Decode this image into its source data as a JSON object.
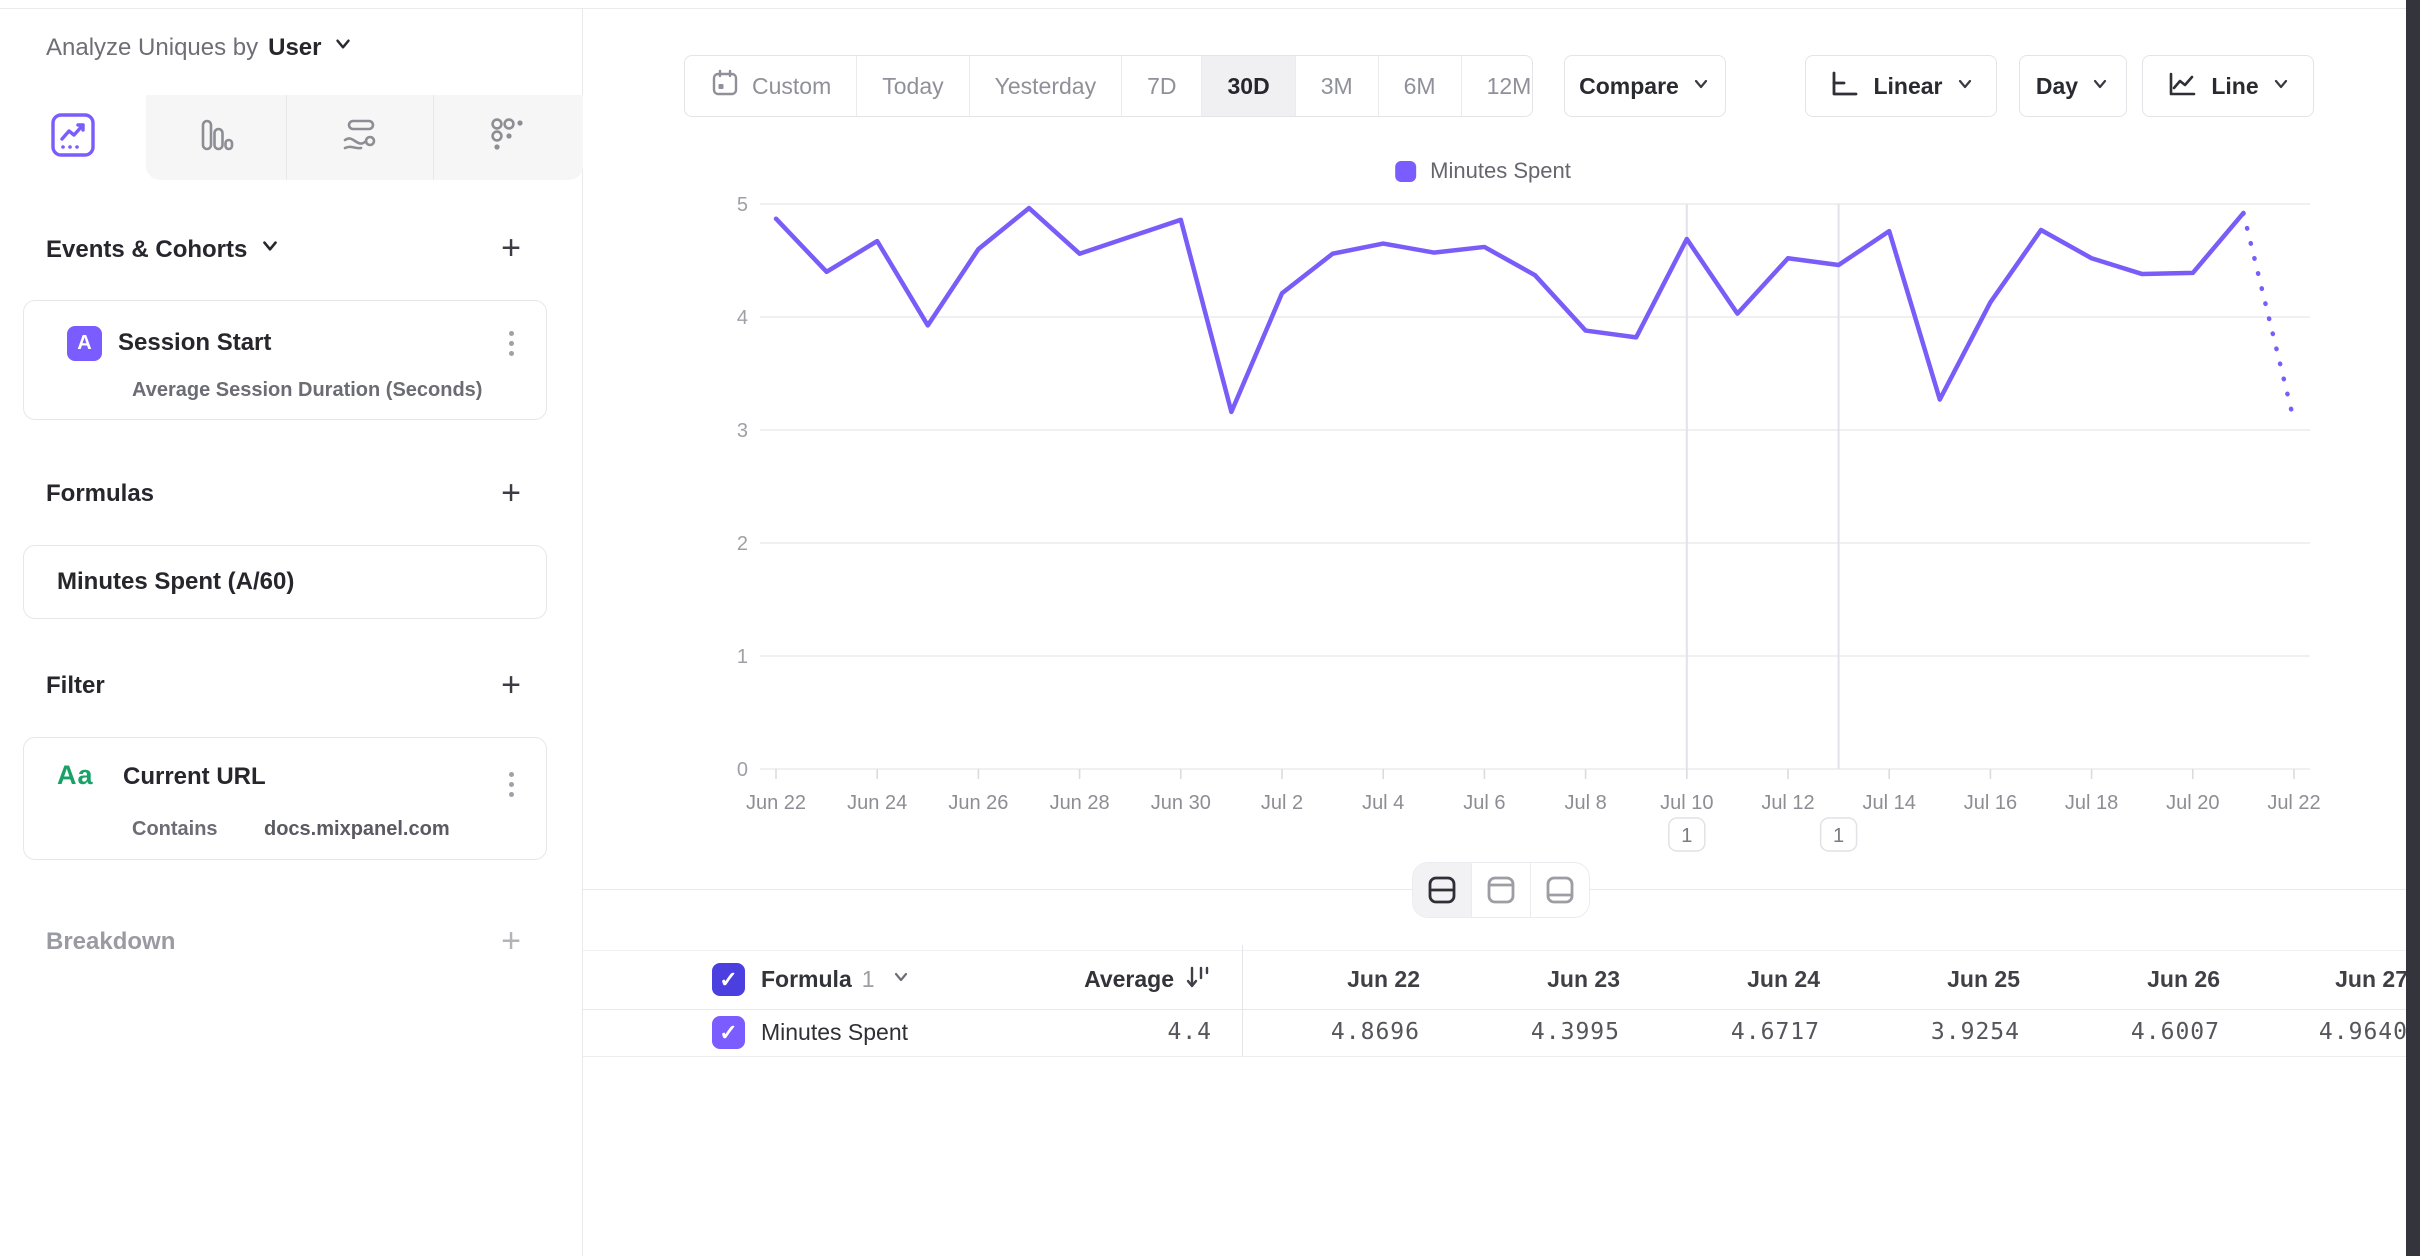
{
  "sidebar": {
    "analyze_label": "Analyze Uniques by",
    "analyze_value": "User",
    "tabs": [
      "insights-line",
      "bar",
      "flow",
      "grid"
    ],
    "events": {
      "title": "Events & Cohorts",
      "card": {
        "badge": "A",
        "title": "Session Start",
        "subtitle": "Average Session Duration (Seconds)"
      }
    },
    "formulas": {
      "title": "Formulas",
      "item": "Minutes Spent (A/60)"
    },
    "filter": {
      "title": "Filter",
      "card": {
        "badge": "Aa",
        "title": "Current URL",
        "operator": "Contains",
        "value": "docs.mixpanel.com"
      }
    },
    "breakdown": {
      "title": "Breakdown"
    }
  },
  "toolbar": {
    "ranges": [
      "Custom",
      "Today",
      "Yesterday",
      "7D",
      "30D",
      "3M",
      "6M",
      "12M"
    ],
    "active_range": "30D",
    "compare_label": "Compare",
    "scale_label": "Linear",
    "granularity_label": "Day",
    "chart_type_label": "Line"
  },
  "chart_data": {
    "type": "line",
    "title": "",
    "series_name": "Minutes Spent",
    "x": [
      "Jun 22",
      "Jun 23",
      "Jun 24",
      "Jun 25",
      "Jun 26",
      "Jun 27",
      "Jun 28",
      "Jun 29",
      "Jun 30",
      "Jul 1",
      "Jul 2",
      "Jul 3",
      "Jul 4",
      "Jul 5",
      "Jul 6",
      "Jul 7",
      "Jul 8",
      "Jul 9",
      "Jul 10",
      "Jul 11",
      "Jul 12",
      "Jul 13",
      "Jul 14",
      "Jul 15",
      "Jul 16",
      "Jul 17",
      "Jul 18",
      "Jul 19",
      "Jul 20",
      "Jul 21",
      "Jul 22"
    ],
    "values": [
      4.8696,
      4.3995,
      4.6717,
      3.9254,
      4.6007,
      4.964,
      4.56,
      4.71,
      4.86,
      3.16,
      4.21,
      4.56,
      4.65,
      4.57,
      4.62,
      4.37,
      3.88,
      3.82,
      4.69,
      4.03,
      4.52,
      4.46,
      4.76,
      3.27,
      4.13,
      4.77,
      4.52,
      4.38,
      4.39,
      4.92,
      3.08
    ],
    "dashed_from_index": 29,
    "ylim": [
      0,
      5
    ],
    "y_ticks": [
      0,
      1,
      2,
      3,
      4,
      5
    ],
    "x_label_step": 2,
    "grid": true,
    "legend_position": "top-center",
    "line_color": "#7A5CF8",
    "annotations": [
      {
        "at": "Jul 10",
        "index": 18,
        "label": "1"
      },
      {
        "at": "Jul 13",
        "index": 21,
        "label": "1"
      }
    ]
  },
  "table": {
    "formula_label": "Formula",
    "formula_index": "1",
    "average_label": "Average",
    "average_value": "4.4",
    "row_label": "Minutes Spent",
    "columns": [
      "Jun 22",
      "Jun 23",
      "Jun 24",
      "Jun 25",
      "Jun 26",
      "Jun 27"
    ],
    "row_values": [
      "4.8696",
      "4.3995",
      "4.6717",
      "3.9254",
      "4.6007",
      "4.9640"
    ]
  },
  "colors": {
    "accent": "#7A5CFF",
    "line": "#7A5CF8",
    "header_checkbox": "#4B3FE0",
    "row_checkbox": "#7A5CFF",
    "filter_badge_green": "#18A267",
    "grid_line": "#ececef",
    "axis_text": "#8d8d94"
  }
}
